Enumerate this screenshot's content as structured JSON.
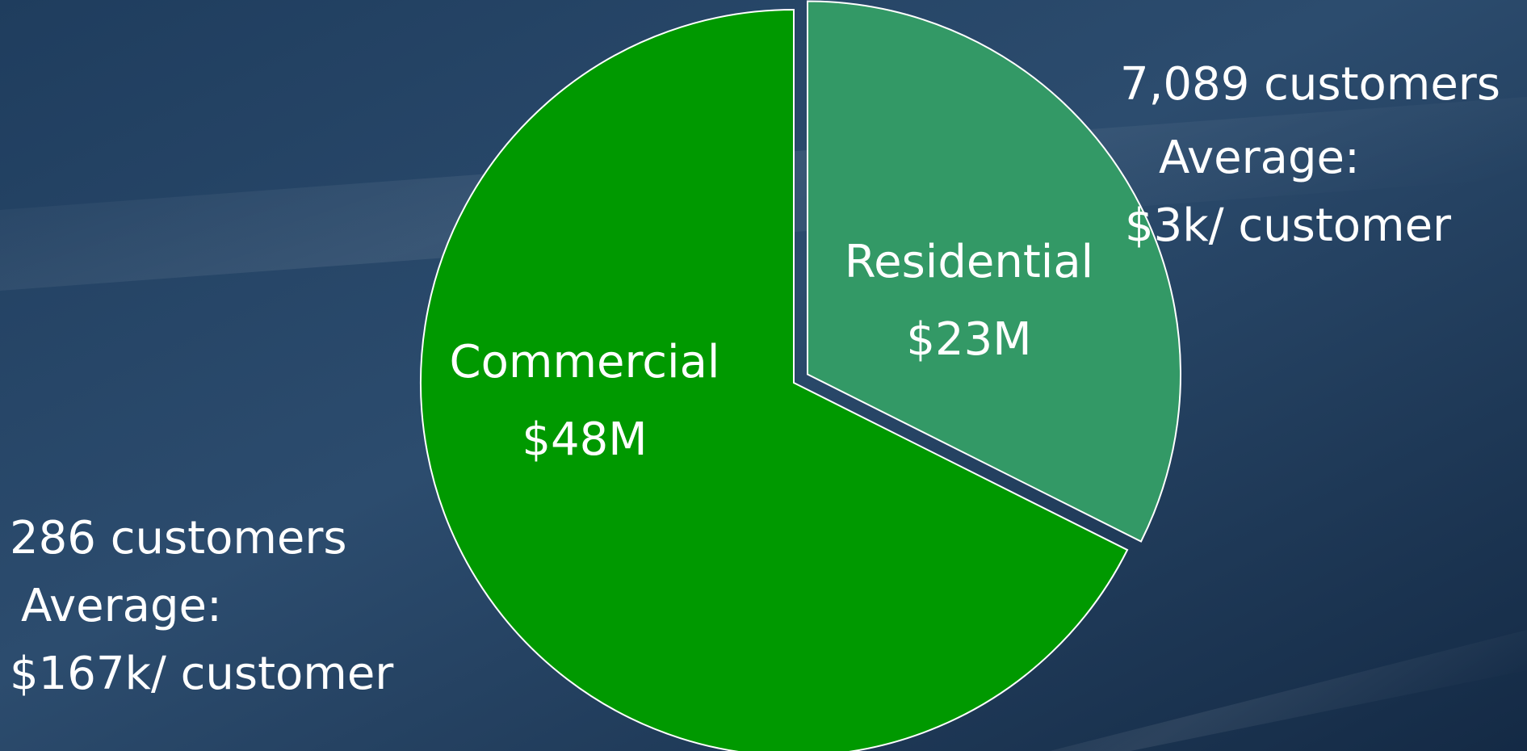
{
  "chart_data": {
    "type": "pie",
    "categories": [
      "Residential",
      "Commercial"
    ],
    "values": [
      23,
      48
    ],
    "value_labels": [
      "$23M",
      "$48M"
    ],
    "colors": [
      "#339966",
      "#009900"
    ],
    "annotations": [
      [
        "7,089 customers",
        "Average:",
        "$3k/ customer"
      ],
      [
        "286 customers",
        "Average:",
        "$167k/ customer"
      ]
    ]
  }
}
